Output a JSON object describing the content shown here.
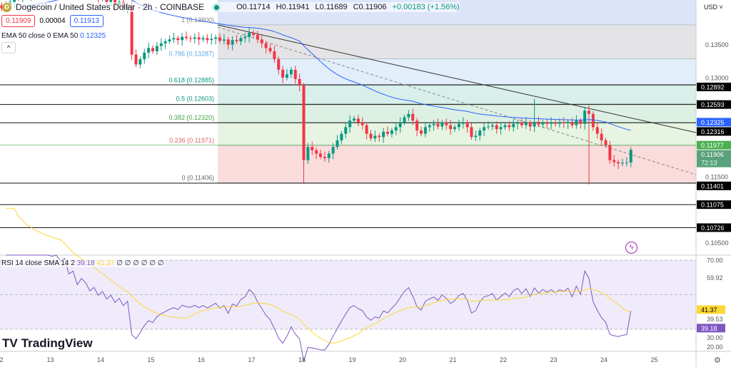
{
  "header": {
    "coin_glyph": "Ð",
    "title": "Dogecoin / United States Dollar · 2h · COINBASE",
    "open": "O0.11714",
    "high": "H0.11941",
    "low": "L0.11689",
    "close": "C0.11906",
    "change": "+0.00183 (+1.56%)"
  },
  "quote": {
    "bid": "0.11909",
    "spread": "0.00004",
    "ask": "0.11913"
  },
  "ema_label": "EMA 50 close 0 EMA 50",
  "ema_value": "0.12325",
  "rsi_label": "RSI 14 close SMA 14 2",
  "rsi_value": "39.18",
  "rsi_sma": "41.37",
  "rsi_extra": "∅ ∅ ∅ ∅ ∅ ∅",
  "currency": "USD",
  "brand": "TradingView",
  "colors": {
    "up": "#089981",
    "down": "#f23645",
    "ema": "#2962ff",
    "rsi": "#7e57c2",
    "rsi_sma": "#fdd835"
  },
  "price_axis": [
    "0.13500",
    "0.13000",
    "0.11500",
    "0.10500"
  ],
  "rsi_axis": [
    "70.00",
    "59.92",
    "39.53",
    "30.00",
    "20.00"
  ],
  "price_labels": [
    {
      "v": 0.12892,
      "t": "0.12892",
      "bg": "#000"
    },
    {
      "v": 0.12593,
      "t": "0.12593",
      "bg": "#000"
    },
    {
      "v": 0.12325,
      "t": "0.12325",
      "bg": "#2962ff"
    },
    {
      "v": 0.12316,
      "t": "0.12316",
      "bg": "#000"
    },
    {
      "v": 0.11977,
      "t": "0.11977",
      "bg": "#4caf50"
    },
    {
      "v": 0.11906,
      "t": "0.11906",
      "bg": "#5aa17d",
      "sub": "72:13"
    },
    {
      "v": 0.11401,
      "t": "0.11401",
      "bg": "#000"
    },
    {
      "v": 0.11075,
      "t": "0.11075",
      "bg": "#000"
    },
    {
      "v": 0.10726,
      "t": "0.10726",
      "bg": "#000"
    }
  ],
  "rsi_labels": [
    {
      "v": 41.37,
      "t": "41.37",
      "bg": "#fdd835",
      "fg": "#000"
    },
    {
      "v": 39.18,
      "t": "39.18",
      "bg": "#7e57c2",
      "fg": "#fff"
    }
  ],
  "fib": [
    {
      "r": "1",
      "p": 0.138,
      "t": "1 (0.13800)",
      "c": "#e4e4e6"
    },
    {
      "r": "0.786",
      "p": 0.13287,
      "t": "0.786 (0.13287)",
      "c": "#e2eefa"
    },
    {
      "r": "0.618",
      "p": 0.12885,
      "t": "0.618 (0.12885)",
      "c": "#d8efea"
    },
    {
      "r": "0.5",
      "p": 0.12603,
      "t": "0.5 (0.12603)",
      "c": "#dcf0e4"
    },
    {
      "r": "0.382",
      "p": 0.1232,
      "t": "0.382 (0.12320)",
      "c": "#e6f4e1"
    },
    {
      "r": "0.236",
      "p": 0.11971,
      "t": "0.236 (0.11971)",
      "c": "#fadcdc"
    },
    {
      "r": "0",
      "p": 0.11406,
      "t": "0 (0.11406)",
      "c": ""
    }
  ],
  "time_axis": [
    "2",
    "13",
    "14",
    "15",
    "16",
    "17",
    "18",
    "19",
    "20",
    "21",
    "22",
    "23",
    "24",
    "25"
  ],
  "chart_data": {
    "type": "candlestick",
    "interval": "2h",
    "start_day": 12,
    "closes": [
      0.1405,
      0.141,
      0.1415,
      0.1425,
      0.142,
      0.143,
      0.1425,
      0.144,
      0.1435,
      0.1445,
      0.144,
      0.145,
      0.1445,
      0.146,
      0.145,
      0.1455,
      0.144,
      0.1445,
      0.143,
      0.144,
      0.1435,
      0.1425,
      0.143,
      0.142,
      0.1425,
      0.1415,
      0.142,
      0.141,
      0.1415,
      0.1405,
      0.141,
      0.1335,
      0.132,
      0.1328,
      0.1338,
      0.1345,
      0.134,
      0.1348,
      0.1352,
      0.1355,
      0.1358,
      0.136,
      0.1357,
      0.1362,
      0.136,
      0.1359,
      0.1361,
      0.1358,
      0.136,
      0.1357,
      0.1359,
      0.1361,
      0.1356,
      0.1358,
      0.135,
      0.1357,
      0.1355,
      0.136,
      0.1362,
      0.1368,
      0.1365,
      0.1358,
      0.1352,
      0.1345,
      0.134,
      0.1328,
      0.1312,
      0.13,
      0.1305,
      0.1312,
      0.1298,
      0.1288,
      0.1175,
      0.1195,
      0.119,
      0.1185,
      0.118,
      0.1178,
      0.1185,
      0.1195,
      0.1205,
      0.1215,
      0.1225,
      0.1235,
      0.1238,
      0.1232,
      0.1228,
      0.1215,
      0.1208,
      0.1212,
      0.121,
      0.1218,
      0.1215,
      0.122,
      0.1225,
      0.1232,
      0.124,
      0.1245,
      0.1235,
      0.122,
      0.1215,
      0.1225,
      0.1228,
      0.123,
      0.1226,
      0.1232,
      0.1228,
      0.1222,
      0.1225,
      0.123,
      0.1232,
      0.1225,
      0.121,
      0.1212,
      0.122,
      0.1225,
      0.1226,
      0.1228,
      0.1222,
      0.1225,
      0.1228,
      0.1225,
      0.123,
      0.1232,
      0.1228,
      0.1232,
      0.1226,
      0.1233,
      0.1229,
      0.1232,
      0.123,
      0.1232,
      0.123,
      0.1232,
      0.1231,
      0.1233,
      0.1228,
      0.1235,
      0.123,
      0.125,
      0.1245,
      0.1225,
      0.1215,
      0.1205,
      0.1198,
      0.1175,
      0.1172,
      0.117,
      0.1171,
      0.11714,
      0.11906
    ]
  }
}
